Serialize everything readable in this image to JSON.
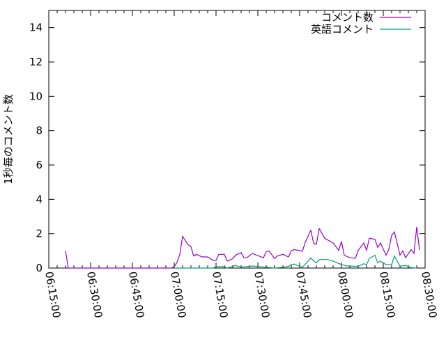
{
  "chart_data": {
    "type": "line",
    "title": "",
    "xlabel": "",
    "ylabel": "1秒毎のコメント数",
    "xlim": [
      "06:15:00",
      "08:30:00"
    ],
    "ylim": [
      0,
      15
    ],
    "x_ticks": [
      "06:15:00",
      "06:30:00",
      "06:45:00",
      "07:00:00",
      "07:15:00",
      "07:30:00",
      "07:45:00",
      "08:00:00",
      "08:15:00",
      "08:30:00"
    ],
    "y_ticks": [
      0,
      2,
      4,
      6,
      8,
      10,
      12,
      14
    ],
    "grid": false,
    "legend_position": "top-right",
    "series": [
      {
        "name": "コメント数",
        "color": "#9400d3",
        "points": [
          [
            "06:21",
            1.0
          ],
          [
            "06:22",
            0
          ],
          [
            "06:59",
            0
          ],
          [
            "07:00",
            0.08
          ],
          [
            "07:01",
            0.33
          ],
          [
            "07:02",
            0.8
          ],
          [
            "07:03",
            1.85
          ],
          [
            "07:05",
            1.35
          ],
          [
            "07:06",
            1.25
          ],
          [
            "07:07",
            0.7
          ],
          [
            "07:08",
            0.8
          ],
          [
            "07:10",
            0.65
          ],
          [
            "07:12",
            0.65
          ],
          [
            "07:14",
            0.45
          ],
          [
            "07:15",
            0.45
          ],
          [
            "07:16",
            0.8
          ],
          [
            "07:18",
            0.8
          ],
          [
            "07:19",
            0.4
          ],
          [
            "07:21",
            0.55
          ],
          [
            "07:22",
            0.75
          ],
          [
            "07:24",
            0.9
          ],
          [
            "07:25",
            0.6
          ],
          [
            "07:26",
            0.6
          ],
          [
            "07:28",
            0.85
          ],
          [
            "07:32",
            0.6
          ],
          [
            "07:33",
            0.95
          ],
          [
            "07:34",
            1.0
          ],
          [
            "07:36",
            0.55
          ],
          [
            "07:37",
            0.7
          ],
          [
            "07:39",
            0.8
          ],
          [
            "07:41",
            0.65
          ],
          [
            "07:42",
            1.0
          ],
          [
            "07:43",
            1.08
          ],
          [
            "07:46",
            0.98
          ],
          [
            "07:47",
            1.5
          ],
          [
            "07:49",
            2.2
          ],
          [
            "07:50",
            1.45
          ],
          [
            "07:51",
            1.38
          ],
          [
            "07:52",
            2.3
          ],
          [
            "07:54",
            1.73
          ],
          [
            "07:57",
            1.46
          ],
          [
            "07:59",
            1.03
          ],
          [
            "08:00",
            1.55
          ],
          [
            "08:01",
            0.75
          ],
          [
            "08:03",
            0.6
          ],
          [
            "08:05",
            0.57
          ],
          [
            "08:06",
            1.03
          ],
          [
            "08:08",
            1.46
          ],
          [
            "08:09",
            1.03
          ],
          [
            "08:10",
            1.73
          ],
          [
            "08:12",
            1.68
          ],
          [
            "08:13",
            1.2
          ],
          [
            "08:14",
            1.46
          ],
          [
            "08:16",
            0.75
          ],
          [
            "08:17",
            1.1
          ],
          [
            "08:18",
            1.9
          ],
          [
            "08:19",
            2.1
          ],
          [
            "08:21",
            0.75
          ],
          [
            "08:22",
            1.0
          ],
          [
            "08:23",
            0.6
          ],
          [
            "08:25",
            1.08
          ],
          [
            "08:26",
            0.85
          ],
          [
            "08:27",
            2.4
          ],
          [
            "08:28",
            1.05
          ]
        ]
      },
      {
        "name": "英語コメント",
        "color": "#009e73",
        "points": [
          [
            "07:00",
            0
          ],
          [
            "07:14",
            0
          ],
          [
            "07:15",
            0.08
          ],
          [
            "07:18",
            0.08
          ],
          [
            "07:19",
            0
          ],
          [
            "07:22",
            0.15
          ],
          [
            "07:24",
            0.05
          ],
          [
            "07:28",
            0.12
          ],
          [
            "07:33",
            0.05
          ],
          [
            "07:36",
            0
          ],
          [
            "07:39",
            0.05
          ],
          [
            "07:41",
            0.1
          ],
          [
            "07:42",
            0.2
          ],
          [
            "07:43",
            0.23
          ],
          [
            "07:46",
            0.05
          ],
          [
            "07:49",
            0.58
          ],
          [
            "07:51",
            0.3
          ],
          [
            "07:52",
            0.5
          ],
          [
            "07:55",
            0.5
          ],
          [
            "07:57",
            0.4
          ],
          [
            "08:00",
            0.2
          ],
          [
            "08:02",
            0.12
          ],
          [
            "08:06",
            0.1
          ],
          [
            "08:08",
            0.25
          ],
          [
            "08:09",
            0.2
          ],
          [
            "08:10",
            0.55
          ],
          [
            "08:12",
            0.75
          ],
          [
            "08:13",
            0.3
          ],
          [
            "08:14",
            0.4
          ],
          [
            "08:16",
            0.2
          ],
          [
            "08:18",
            0.2
          ],
          [
            "08:19",
            0.7
          ],
          [
            "08:21",
            0.1
          ],
          [
            "08:23",
            0.15
          ],
          [
            "08:25",
            0.03
          ],
          [
            "08:27",
            0
          ]
        ]
      }
    ]
  }
}
